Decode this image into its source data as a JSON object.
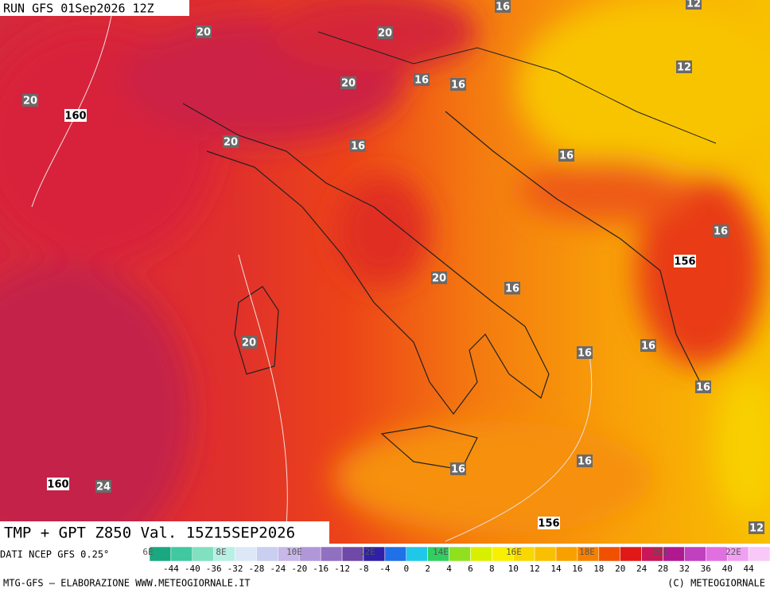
{
  "header": {
    "run": "RUN GFS 01Sep2026 12Z"
  },
  "map": {
    "field_label": "TMP + GPT Z850 Val. 15Z15SEP2026",
    "temperature_labels": [
      "20",
      "20",
      "20",
      "20",
      "16",
      "16",
      "16",
      "12",
      "12",
      "20",
      "16",
      "16",
      "16",
      "20",
      "16",
      "20",
      "16",
      "16",
      "16",
      "16",
      "16",
      "24",
      "12"
    ],
    "height_labels": [
      "160",
      "156",
      "160",
      "156"
    ]
  },
  "colorbar": {
    "source": "DATI NCEP GFS 0.25°",
    "longitude_labels": [
      "6E",
      "8E",
      "10E",
      "12E",
      "14E",
      "16E",
      "18E",
      "20E",
      "22E"
    ],
    "ticks": [
      -44,
      -40,
      -36,
      -32,
      -28,
      -24,
      -20,
      -16,
      -12,
      -8,
      -4,
      0,
      2,
      4,
      6,
      8,
      10,
      12,
      14,
      16,
      18,
      20,
      24,
      28,
      32,
      36,
      40,
      44
    ],
    "colors": [
      "#1aa880",
      "#40c8a0",
      "#80e0c0",
      "#b8f0e4",
      "#dce8f8",
      "#c8cff0",
      "#c8b8e8",
      "#b098d8",
      "#9070c0",
      "#7048a8",
      "#3020a8",
      "#2070e8",
      "#20c8e8",
      "#30d060",
      "#90e020",
      "#d8f000",
      "#f8f000",
      "#f8d800",
      "#f8c000",
      "#f8a000",
      "#f88000",
      "#f05000",
      "#e01818",
      "#c81858",
      "#b01890",
      "#c040c0",
      "#e070e0",
      "#f0a0f0",
      "#f8c8f8"
    ]
  },
  "footer": {
    "left": "MTG-GFS – ELABORAZIONE WWW.METEOGIORNALE.IT",
    "right": "(C) METEOGIORNALE"
  }
}
